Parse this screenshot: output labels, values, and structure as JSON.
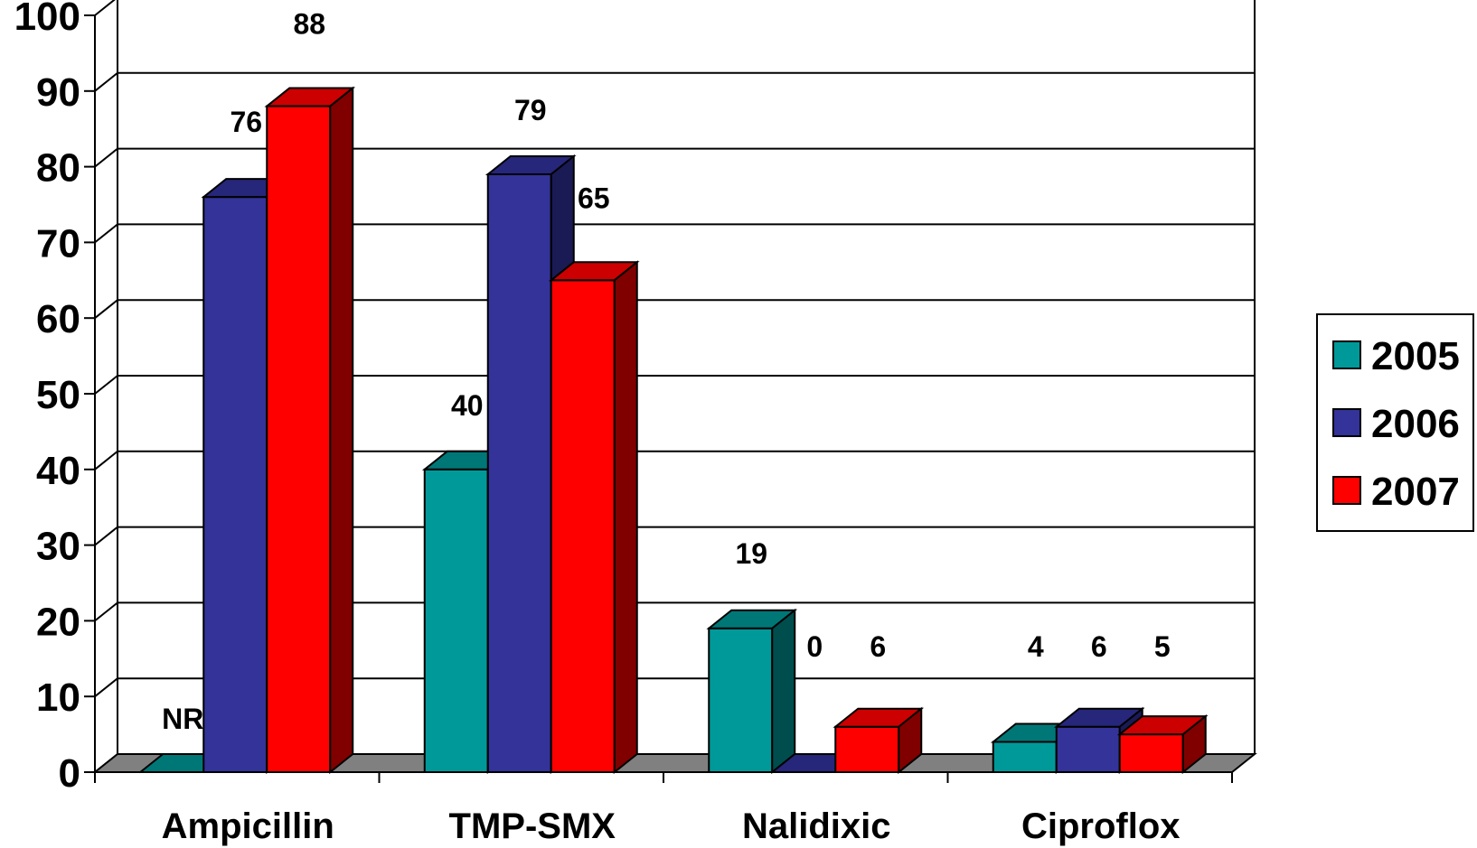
{
  "chart_data": {
    "type": "bar",
    "categories": [
      "Ampicillin",
      "TMP-SMX",
      "Nalidixic",
      "Ciproflox"
    ],
    "series": [
      {
        "name": "2005",
        "values": [
          null,
          40,
          19,
          4
        ],
        "labels": [
          "NR",
          "40",
          "19",
          "4"
        ],
        "color": "#009999",
        "top": "#007777",
        "side": "#004d4d"
      },
      {
        "name": "2006",
        "values": [
          76,
          79,
          0,
          6
        ],
        "labels": [
          "76",
          "79",
          "0",
          "6"
        ],
        "color": "#333399",
        "top": "#26267a",
        "side": "#1a1a55"
      },
      {
        "name": "2007",
        "values": [
          88,
          65,
          6,
          5
        ],
        "labels": [
          "88",
          "65",
          "6",
          "5"
        ],
        "color": "#ff0000",
        "top": "#cc0000",
        "side": "#800000"
      }
    ],
    "y_ticks": [
      "0",
      "10",
      "20",
      "30",
      "40",
      "50",
      "60",
      "70",
      "80",
      "90",
      "100"
    ],
    "ylim": [
      0,
      100
    ],
    "grid": true,
    "legend_position": "right",
    "floor_color": "#808080"
  }
}
